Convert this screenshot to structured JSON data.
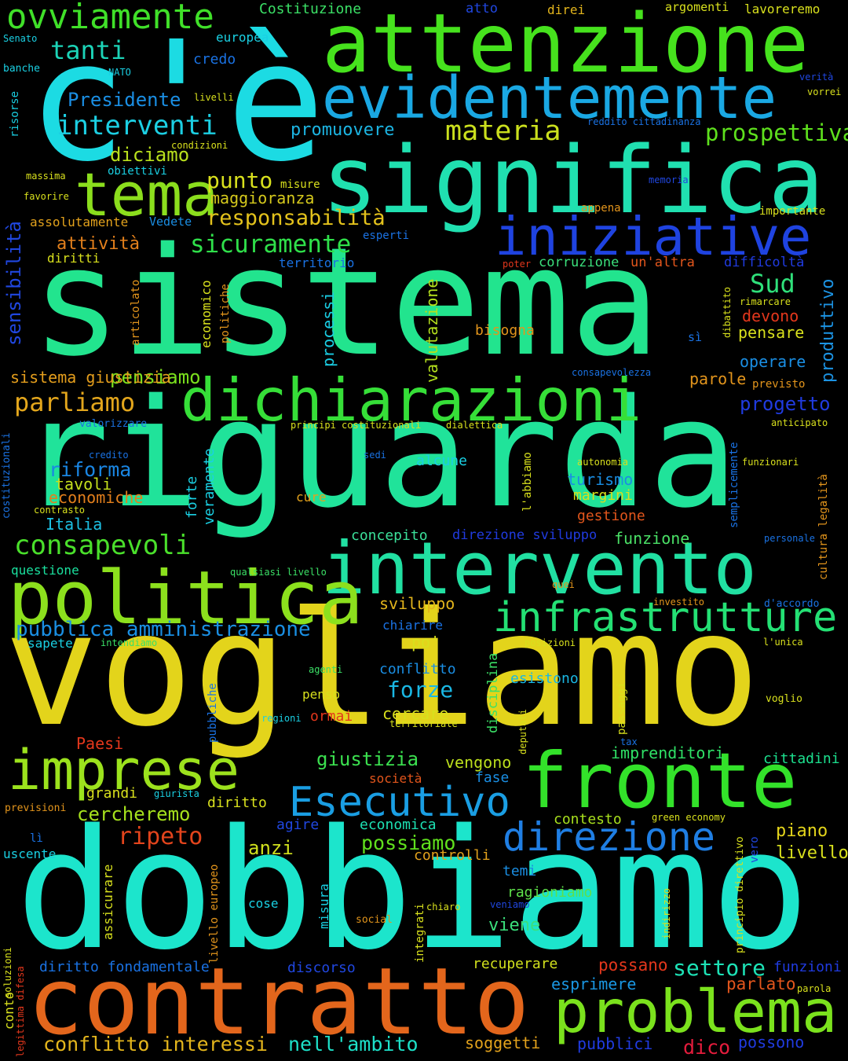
{
  "colors": {
    "background": "#000000"
  },
  "words": [
    {
      "text": "vogliamo",
      "color": "#e3d41b"
    },
    {
      "text": "dobbiamo",
      "color": "#1ce5cc"
    },
    {
      "text": "riguarda",
      "color": "#20e39a"
    },
    {
      "text": "sistema",
      "color": "#22e48e"
    },
    {
      "text": "c'è",
      "color": "#1cdbe3"
    },
    {
      "text": "significa",
      "color": "#20e0b0"
    },
    {
      "text": "attenzione",
      "color": "#46e21d"
    },
    {
      "text": "evidentemente",
      "color": "#1aa8e3"
    },
    {
      "text": "contratto",
      "color": "#e3661c"
    },
    {
      "text": "intervento",
      "color": "#21e0a2"
    },
    {
      "text": "dichiarazioni",
      "color": "#36df38"
    },
    {
      "text": "politica",
      "color": "#8ce01d"
    },
    {
      "text": "fronte",
      "color": "#33e22a"
    },
    {
      "text": "problema",
      "color": "#7be21d"
    },
    {
      "text": "iniziative",
      "color": "#1f43e0"
    },
    {
      "text": "tema",
      "color": "#8bde1d"
    },
    {
      "text": "imprese",
      "color": "#9ce21d"
    },
    {
      "text": "infrastrutture",
      "color": "#24e074"
    },
    {
      "text": "Esecutivo",
      "color": "#1a9ee3"
    },
    {
      "text": "direzione",
      "color": "#1f7ee3"
    },
    {
      "text": "ovviamente",
      "color": "#40e029"
    },
    {
      "text": "interventi",
      "color": "#1ccfe3"
    },
    {
      "text": "responsabilità",
      "color": "#e3c21c"
    },
    {
      "text": "sicuramente",
      "color": "#2fe04a"
    },
    {
      "text": "consapevoli",
      "color": "#4ae02b"
    },
    {
      "text": "pubblica amministrazione",
      "color": "#1a8fe3"
    },
    {
      "text": "conflitto interessi",
      "color": "#e3b51c"
    },
    {
      "text": "nell'ambito",
      "color": "#1de0c8"
    },
    {
      "text": "materia",
      "color": "#cbe01d"
    },
    {
      "text": "prospettiva",
      "color": "#5ee01d"
    },
    {
      "text": "parliamo",
      "color": "#e3a61c"
    },
    {
      "text": "settore",
      "color": "#1de2b6"
    },
    {
      "text": "tanti",
      "color": "#1cd3b7"
    },
    {
      "text": "Presidente",
      "color": "#1a8ee3"
    },
    {
      "text": "punto",
      "color": "#d8e01d"
    },
    {
      "text": "maggioranza",
      "color": "#d5c91c"
    },
    {
      "text": "diciamo",
      "color": "#b9e01d"
    },
    {
      "text": "promuovere",
      "color": "#1cb5e3"
    },
    {
      "text": "attività",
      "color": "#e3801c"
    },
    {
      "text": "Sud",
      "color": "#2fe07a"
    },
    {
      "text": "pensiamo",
      "color": "#7be01d"
    },
    {
      "text": "sistema giustizia",
      "color": "#e39d1c"
    },
    {
      "text": "riforma",
      "color": "#1a86e3"
    },
    {
      "text": "tavoli",
      "color": "#c5e01d"
    },
    {
      "text": "economiche",
      "color": "#e37f1c"
    },
    {
      "text": "Italia",
      "color": "#1cc0e3"
    },
    {
      "text": "sensibilità",
      "color": "#2047e0"
    },
    {
      "text": "valutazione",
      "color": "#b4e01d"
    },
    {
      "text": "processi",
      "color": "#1acde3"
    },
    {
      "text": "produttivo",
      "color": "#1c93e3"
    },
    {
      "text": "forze",
      "color": "#1ab7e3"
    },
    {
      "text": "giustizia",
      "color": "#3be04f"
    },
    {
      "text": "vengono",
      "color": "#bde01d"
    },
    {
      "text": "imprenditori",
      "color": "#2fe066"
    },
    {
      "text": "cercheremo",
      "color": "#a5e01d"
    },
    {
      "text": "ripeto",
      "color": "#e3441c"
    },
    {
      "text": "possiamo",
      "color": "#60e01d"
    },
    {
      "text": "anzi",
      "color": "#d0e01d"
    },
    {
      "text": "piano",
      "color": "#e3d41b"
    },
    {
      "text": "livello",
      "color": "#d8e01d"
    },
    {
      "text": "progetto",
      "color": "#203be0"
    },
    {
      "text": "operare",
      "color": "#1a8ee3"
    },
    {
      "text": "pensare",
      "color": "#d8e01d"
    },
    {
      "text": "devono",
      "color": "#e3371c"
    },
    {
      "text": "parole",
      "color": "#e3951c"
    },
    {
      "text": "sviluppo",
      "color": "#e3b51c"
    },
    {
      "text": "dico",
      "color": "#e31c3c"
    },
    {
      "text": "possano",
      "color": "#e3371c"
    },
    {
      "text": "parlato",
      "color": "#e3561c"
    },
    {
      "text": "esprimere",
      "color": "#1a97e3"
    },
    {
      "text": "soggetti",
      "color": "#e3a21c"
    },
    {
      "text": "pubblici",
      "color": "#203be0"
    },
    {
      "text": "possono",
      "color": "#203be0"
    },
    {
      "text": "funzioni",
      "color": "#203be0"
    },
    {
      "text": "recuperare",
      "color": "#d1e01d"
    },
    {
      "text": "discorso",
      "color": "#2047e0"
    },
    {
      "text": "diritto fondamentale",
      "color": "#1a72e3"
    },
    {
      "text": "viene",
      "color": "#3be07c"
    },
    {
      "text": "ragioniamo",
      "color": "#5ee04a"
    },
    {
      "text": "temi",
      "color": "#1a8ee3"
    },
    {
      "text": "controlli",
      "color": "#e3a21c"
    },
    {
      "text": "contesto",
      "color": "#a8e01d"
    },
    {
      "text": "economica",
      "color": "#1de0b2"
    },
    {
      "text": "agire",
      "color": "#2047e0"
    },
    {
      "text": "diritto",
      "color": "#d8e01d"
    },
    {
      "text": "grandi",
      "color": "#d8e01d"
    },
    {
      "text": "fase",
      "color": "#1a8ee3"
    },
    {
      "text": "società",
      "color": "#e3561c"
    },
    {
      "text": "cittadini",
      "color": "#1ce08e"
    },
    {
      "text": "cercare",
      "color": "#d8e01d"
    },
    {
      "text": "esistono",
      "color": "#1ab7e3"
    },
    {
      "text": "conflitto",
      "color": "#1a8ee3"
    },
    {
      "text": "penso",
      "color": "#d8e01d"
    },
    {
      "text": "ormai",
      "color": "#e3371c"
    },
    {
      "text": "Paesi",
      "color": "#e3371c"
    },
    {
      "text": "po'",
      "color": "#d8e01d"
    },
    {
      "text": "chiarire",
      "color": "#1a72e3"
    },
    {
      "text": "concepito",
      "color": "#3be09a"
    },
    {
      "text": "funzione",
      "color": "#4ae066"
    },
    {
      "text": "direzione sviluppo",
      "color": "#203be0"
    },
    {
      "text": "gestione",
      "color": "#e3561c"
    },
    {
      "text": "margini",
      "color": "#d8e01d"
    },
    {
      "text": "turismo",
      "color": "#1a8ee3"
    },
    {
      "text": "alcune",
      "color": "#1ad0e3"
    },
    {
      "text": "cure",
      "color": "#e3a21c"
    },
    {
      "text": "bisogna",
      "color": "#e3951c"
    },
    {
      "text": "corruzione",
      "color": "#3be07c"
    },
    {
      "text": "un'altra",
      "color": "#e3561c"
    },
    {
      "text": "difficoltà",
      "color": "#203be0"
    },
    {
      "text": "territorio",
      "color": "#1a72e3"
    },
    {
      "text": "diritti",
      "color": "#d8e01d"
    },
    {
      "text": "assolutamente",
      "color": "#e3a21c"
    },
    {
      "text": "questione",
      "color": "#1ae09e"
    },
    {
      "text": "sapete",
      "color": "#1ad0e3"
    },
    {
      "text": "uscente",
      "color": "#1ad0e3"
    },
    {
      "text": "previsioni",
      "color": "#e3951c"
    },
    {
      "text": "Costituzione",
      "color": "#3be066"
    },
    {
      "text": "europea",
      "color": "#1ad0e3"
    },
    {
      "text": "credo",
      "color": "#1a72e3"
    },
    {
      "text": "atto",
      "color": "#2047e0"
    },
    {
      "text": "direi",
      "color": "#e3b51c"
    },
    {
      "text": "argomenti",
      "color": "#d8e01d"
    },
    {
      "text": "lavoreremo",
      "color": "#d8e01d"
    },
    {
      "text": "Senato",
      "color": "#1ad0e3"
    },
    {
      "text": "banche",
      "color": "#1ad0e3"
    },
    {
      "text": "NATO",
      "color": "#1ad0e3"
    },
    {
      "text": "livelli",
      "color": "#d8e01d"
    },
    {
      "text": "condizioni",
      "color": "#d8e01d"
    },
    {
      "text": "obiettivi",
      "color": "#1ad0e3"
    },
    {
      "text": "massima",
      "color": "#d8e01d"
    },
    {
      "text": "favorire",
      "color": "#d8e01d"
    },
    {
      "text": "misure",
      "color": "#d8e01d"
    },
    {
      "text": "Vedete",
      "color": "#1a8ee3"
    },
    {
      "text": "appena",
      "color": "#e3951c"
    },
    {
      "text": "importante",
      "color": "#d8e01d"
    },
    {
      "text": "esperti",
      "color": "#1a72e3"
    },
    {
      "text": "poter",
      "color": "#e3371c"
    },
    {
      "text": "rimarcare",
      "color": "#d8e01d"
    },
    {
      "text": "sì",
      "color": "#1a72e3"
    },
    {
      "text": "consapevolezza",
      "color": "#1a72e3"
    },
    {
      "text": "previsto",
      "color": "#e3951c"
    },
    {
      "text": "anticipato",
      "color": "#d8e01d"
    },
    {
      "text": "principi costituzionali",
      "color": "#d8e01d"
    },
    {
      "text": "dialettica",
      "color": "#d8e01d"
    },
    {
      "text": "valorizzare",
      "color": "#1a72e3"
    },
    {
      "text": "credito",
      "color": "#1a72e3"
    },
    {
      "text": "contrasto",
      "color": "#d8e01d"
    },
    {
      "text": "sedi",
      "color": "#1a72e3"
    },
    {
      "text": "autonomia",
      "color": "#d8e01d"
    },
    {
      "text": "funzionari",
      "color": "#d8e01d"
    },
    {
      "text": "personale",
      "color": "#1a72e3"
    },
    {
      "text": "qualsiasi livello",
      "color": "#3be066"
    },
    {
      "text": "quei",
      "color": "#e3951c"
    },
    {
      "text": "investito",
      "color": "#e3951c"
    },
    {
      "text": "d'accordo",
      "color": "#1a72e3"
    },
    {
      "text": "intendiamo",
      "color": "#3be066"
    },
    {
      "text": "posizioni",
      "color": "#d8e01d"
    },
    {
      "text": "l'unica",
      "color": "#d8e01d"
    },
    {
      "text": "agenti",
      "color": "#3be066"
    },
    {
      "text": "voglio",
      "color": "#d8e01d"
    },
    {
      "text": "regioni",
      "color": "#1ad0e3"
    },
    {
      "text": "territoriale",
      "color": "#d8e01d"
    },
    {
      "text": "tax",
      "color": "#1a72e3"
    },
    {
      "text": "giurista",
      "color": "#1ad0e3"
    },
    {
      "text": "green economy",
      "color": "#d8e01d"
    },
    {
      "text": "lì",
      "color": "#1a72e3"
    },
    {
      "text": "chiaro",
      "color": "#d8e01d"
    },
    {
      "text": "veniamo",
      "color": "#2047e0"
    },
    {
      "text": "social",
      "color": "#e3951c"
    },
    {
      "text": "cose",
      "color": "#1ad0e3"
    },
    {
      "text": "soluzioni",
      "color": "#d8e01d"
    },
    {
      "text": "conto",
      "color": "#d8e01d"
    },
    {
      "text": "parola",
      "color": "#d8e01d"
    },
    {
      "text": "verità",
      "color": "#2047e0"
    },
    {
      "text": "vorrei",
      "color": "#d8e01d"
    },
    {
      "text": "memoria",
      "color": "#2047e0"
    },
    {
      "text": "reddito cittadinanza",
      "color": "#1a72e3"
    },
    {
      "text": "risorse",
      "color": "#1ad0e3"
    },
    {
      "text": "articolato",
      "color": "#e3951c"
    },
    {
      "text": "economico",
      "color": "#d8e01d"
    },
    {
      "text": "politiche",
      "color": "#e3951c"
    },
    {
      "text": "dibattito",
      "color": "#d8e01d"
    },
    {
      "text": "costituzionali",
      "color": "#1a72e3"
    },
    {
      "text": "forte",
      "color": "#1ad0e3"
    },
    {
      "text": "veramente",
      "color": "#1ad0e3"
    },
    {
      "text": "l'abbiamo",
      "color": "#d8e01d"
    },
    {
      "text": "semplicemente",
      "color": "#1a72e3"
    },
    {
      "text": "cultura legalità",
      "color": "#e3951c"
    },
    {
      "text": "disciplina",
      "color": "#3be066"
    },
    {
      "text": "deputati",
      "color": "#d8e01d"
    },
    {
      "text": "passaggi",
      "color": "#d8e01d"
    },
    {
      "text": "pubbliche",
      "color": "#1a72e3"
    },
    {
      "text": "livello europeo",
      "color": "#e3951c"
    },
    {
      "text": "assicurare",
      "color": "#d8e01d"
    },
    {
      "text": "misura",
      "color": "#1ad0e3"
    },
    {
      "text": "integrati",
      "color": "#d8e01d"
    },
    {
      "text": "indirizzo",
      "color": "#d8e01d"
    },
    {
      "text": "principio direttivo",
      "color": "#d8e01d"
    },
    {
      "text": "vero",
      "color": "#2047e0"
    },
    {
      "text": "legittima difesa",
      "color": "#e3371c"
    }
  ]
}
